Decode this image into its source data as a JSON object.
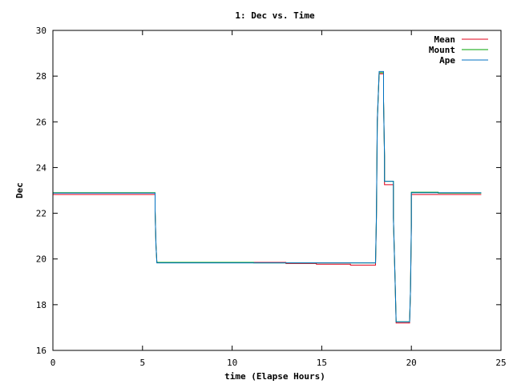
{
  "chart_data": {
    "type": "line",
    "title": "1: Dec vs. Time",
    "xlabel": "time (Elapse Hours)",
    "ylabel": "Dec",
    "xlim": [
      0,
      25
    ],
    "ylim": [
      16,
      30
    ],
    "xticks": [
      "0",
      "5",
      "10",
      "15",
      "20",
      "25"
    ],
    "yticks": [
      "16",
      "18",
      "20",
      "22",
      "24",
      "26",
      "28",
      "30"
    ],
    "grid": false,
    "legend_position": "top-right",
    "series": [
      {
        "name": "Mean",
        "color": "#e0001a",
        "points": [
          [
            0,
            22.82
          ],
          [
            5.7,
            22.82
          ],
          [
            5.7,
            22.1
          ],
          [
            5.75,
            20.6
          ],
          [
            5.8,
            19.85
          ],
          [
            13,
            19.85
          ],
          [
            13,
            19.8
          ],
          [
            14.7,
            19.8
          ],
          [
            14.7,
            19.77
          ],
          [
            16.6,
            19.77
          ],
          [
            16.6,
            19.73
          ],
          [
            18,
            19.73
          ],
          [
            18.05,
            21.8
          ],
          [
            18.1,
            26.1
          ],
          [
            18.2,
            28.1
          ],
          [
            18.45,
            28.1
          ],
          [
            18.45,
            26.9
          ],
          [
            18.5,
            24.5
          ],
          [
            18.5,
            23.25
          ],
          [
            19,
            23.25
          ],
          [
            19,
            21.8
          ],
          [
            19.1,
            18.8
          ],
          [
            19.15,
            17.2
          ],
          [
            19.9,
            17.2
          ],
          [
            19.95,
            18.6
          ],
          [
            20,
            21.4
          ],
          [
            20,
            22.82
          ],
          [
            23.9,
            22.82
          ]
        ]
      },
      {
        "name": "Mount",
        "color": "#00a000",
        "points": [
          [
            0,
            22.9
          ],
          [
            5.7,
            22.9
          ],
          [
            5.7,
            22.1
          ],
          [
            5.75,
            20.6
          ],
          [
            5.8,
            19.85
          ],
          [
            11.2,
            19.85
          ],
          [
            11.2,
            19.83
          ],
          [
            18,
            19.83
          ],
          [
            18.05,
            21.8
          ],
          [
            18.1,
            26
          ],
          [
            18.2,
            28.15
          ],
          [
            18.45,
            28.15
          ],
          [
            18.45,
            26.9
          ],
          [
            18.5,
            24.5
          ],
          [
            18.5,
            23.4
          ],
          [
            19,
            23.4
          ],
          [
            19,
            21.8
          ],
          [
            19.1,
            18.8
          ],
          [
            19.15,
            17.25
          ],
          [
            19.9,
            17.25
          ],
          [
            19.95,
            18.6
          ],
          [
            20,
            21.5
          ],
          [
            20,
            22.92
          ],
          [
            21.5,
            22.92
          ],
          [
            21.5,
            22.88
          ],
          [
            23.9,
            22.88
          ]
        ]
      },
      {
        "name": "Ape",
        "color": "#0070c0",
        "points": [
          [
            0,
            22.88
          ],
          [
            5.7,
            22.88
          ],
          [
            5.7,
            22.1
          ],
          [
            5.75,
            20.6
          ],
          [
            5.8,
            19.83
          ],
          [
            18,
            19.83
          ],
          [
            18.05,
            21.9
          ],
          [
            18.1,
            26
          ],
          [
            18.2,
            28.2
          ],
          [
            18.45,
            28.2
          ],
          [
            18.45,
            26.9
          ],
          [
            18.5,
            24.5
          ],
          [
            18.5,
            23.4
          ],
          [
            19,
            23.4
          ],
          [
            19,
            21.8
          ],
          [
            19.1,
            18.8
          ],
          [
            19.15,
            17.25
          ],
          [
            19.9,
            17.25
          ],
          [
            19.95,
            18.6
          ],
          [
            20,
            21.5
          ],
          [
            20,
            22.9
          ],
          [
            23.9,
            22.9
          ]
        ]
      }
    ]
  }
}
